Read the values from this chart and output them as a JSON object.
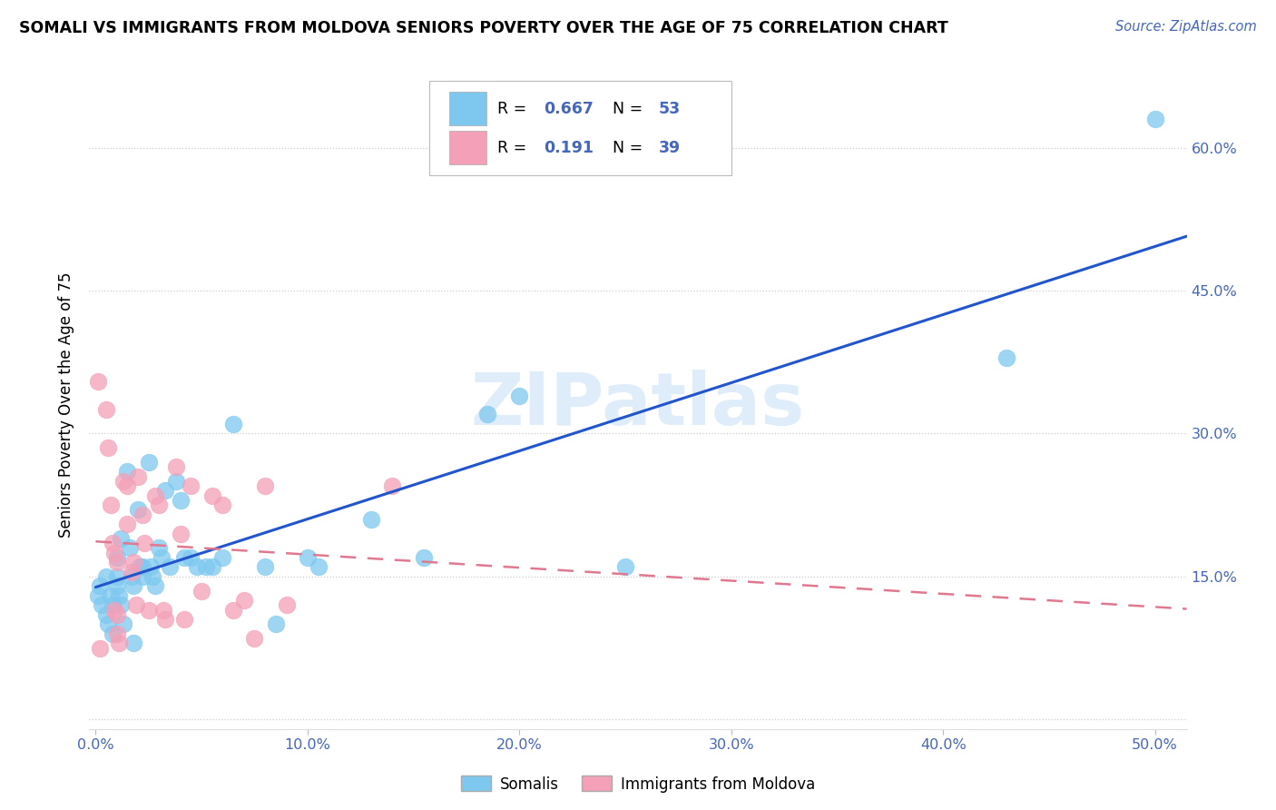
{
  "title": "SOMALI VS IMMIGRANTS FROM MOLDOVA SENIORS POVERTY OVER THE AGE OF 75 CORRELATION CHART",
  "source": "Source: ZipAtlas.com",
  "ylabel": "Seniors Poverty Over the Age of 75",
  "xlim": [
    -0.003,
    0.515
  ],
  "ylim": [
    -0.01,
    0.67
  ],
  "somali_color": "#7EC8F0",
  "moldova_color": "#F4A0B8",
  "somali_line_color": "#2255CC",
  "moldova_line_color": "#E07890",
  "tick_color": "#4466BB",
  "grid_color": "#cccccc",
  "watermark": "ZIPatlas",
  "legend_labels": [
    "Somalis",
    "Immigrants from Moldova"
  ],
  "somali_R": "0.667",
  "somali_N": "53",
  "moldova_R": "0.191",
  "moldova_N": "39",
  "somali_x": [
    0.001,
    0.002,
    0.003,
    0.005,
    0.005,
    0.006,
    0.007,
    0.008,
    0.008,
    0.01,
    0.01,
    0.01,
    0.011,
    0.012,
    0.012,
    0.013,
    0.015,
    0.016,
    0.017,
    0.018,
    0.018,
    0.02,
    0.021,
    0.022,
    0.022,
    0.025,
    0.026,
    0.027,
    0.028,
    0.03,
    0.031,
    0.033,
    0.035,
    0.038,
    0.04,
    0.042,
    0.045,
    0.048,
    0.052,
    0.055,
    0.06,
    0.065,
    0.08,
    0.085,
    0.1,
    0.105,
    0.13,
    0.155,
    0.185,
    0.2,
    0.25,
    0.43,
    0.5
  ],
  "somali_y": [
    0.13,
    0.14,
    0.12,
    0.15,
    0.11,
    0.1,
    0.13,
    0.12,
    0.09,
    0.15,
    0.17,
    0.14,
    0.13,
    0.19,
    0.12,
    0.1,
    0.26,
    0.18,
    0.15,
    0.14,
    0.08,
    0.22,
    0.16,
    0.15,
    0.16,
    0.27,
    0.16,
    0.15,
    0.14,
    0.18,
    0.17,
    0.24,
    0.16,
    0.25,
    0.23,
    0.17,
    0.17,
    0.16,
    0.16,
    0.16,
    0.17,
    0.31,
    0.16,
    0.1,
    0.17,
    0.16,
    0.21,
    0.17,
    0.32,
    0.34,
    0.16,
    0.38,
    0.63
  ],
  "moldova_x": [
    0.001,
    0.002,
    0.005,
    0.006,
    0.007,
    0.008,
    0.009,
    0.009,
    0.01,
    0.01,
    0.01,
    0.011,
    0.013,
    0.015,
    0.015,
    0.017,
    0.018,
    0.019,
    0.02,
    0.022,
    0.023,
    0.025,
    0.028,
    0.03,
    0.032,
    0.033,
    0.038,
    0.04,
    0.042,
    0.045,
    0.05,
    0.055,
    0.06,
    0.065,
    0.07,
    0.075,
    0.08,
    0.09,
    0.14
  ],
  "moldova_y": [
    0.355,
    0.075,
    0.325,
    0.285,
    0.225,
    0.185,
    0.175,
    0.115,
    0.165,
    0.11,
    0.09,
    0.08,
    0.25,
    0.245,
    0.205,
    0.155,
    0.165,
    0.12,
    0.255,
    0.215,
    0.185,
    0.115,
    0.235,
    0.225,
    0.115,
    0.105,
    0.265,
    0.195,
    0.105,
    0.245,
    0.135,
    0.235,
    0.225,
    0.115,
    0.125,
    0.085,
    0.245,
    0.12,
    0.245
  ]
}
